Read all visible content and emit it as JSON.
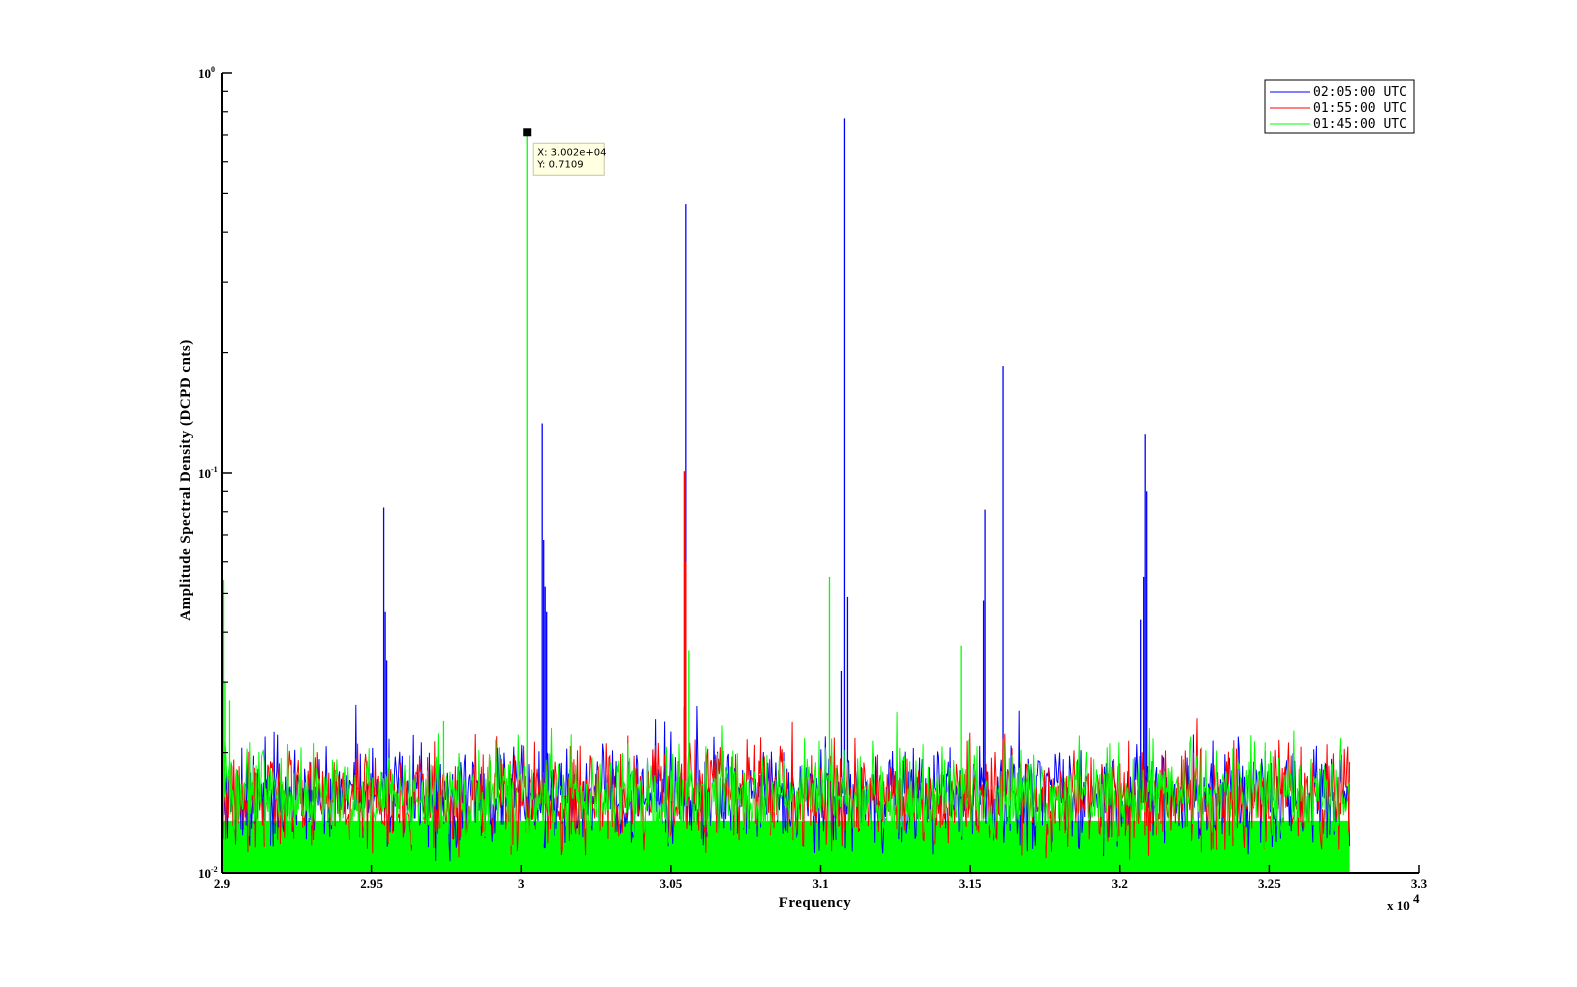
{
  "chart_data": {
    "type": "line",
    "xlabel": "Frequency",
    "ylabel": "Amplitude Spectral Density (DCPD cnts)",
    "x_exponent_label": "x 10",
    "x_exponent_power": "4",
    "xlim": [
      29000,
      33000
    ],
    "ylim": [
      0.01,
      1
    ],
    "yscale": "log",
    "grid": false,
    "legend_position": "top-right",
    "x_ticks": [
      {
        "value": 29000,
        "label": "2.9"
      },
      {
        "value": 29500,
        "label": "2.95"
      },
      {
        "value": 30000,
        "label": "3"
      },
      {
        "value": 30500,
        "label": "3.05"
      },
      {
        "value": 31000,
        "label": "3.1"
      },
      {
        "value": 31500,
        "label": "3.15"
      },
      {
        "value": 32000,
        "label": "3.2"
      },
      {
        "value": 32500,
        "label": "3.25"
      },
      {
        "value": 33000,
        "label": "3.3"
      }
    ],
    "y_ticks": [
      {
        "value": 0.01,
        "base": "10",
        "exp": "-2"
      },
      {
        "value": 0.1,
        "base": "10",
        "exp": "-1"
      },
      {
        "value": 1,
        "base": "10",
        "exp": "0"
      }
    ],
    "data_x_range": [
      29000,
      32768
    ],
    "series": [
      {
        "name": "02:05:00 UTC",
        "color": "#0000ff",
        "noise_floor": 0.0155,
        "peaks": [
          {
            "x": 29540,
            "y": 0.082
          },
          {
            "x": 29545,
            "y": 0.045
          },
          {
            "x": 29550,
            "y": 0.034
          },
          {
            "x": 30070,
            "y": 0.133
          },
          {
            "x": 30075,
            "y": 0.068
          },
          {
            "x": 30080,
            "y": 0.052
          },
          {
            "x": 30085,
            "y": 0.045
          },
          {
            "x": 30550,
            "y": 0.47
          },
          {
            "x": 30545,
            "y": 0.026
          },
          {
            "x": 31080,
            "y": 0.77
          },
          {
            "x": 31090,
            "y": 0.049
          },
          {
            "x": 31070,
            "y": 0.032
          },
          {
            "x": 31550,
            "y": 0.081
          },
          {
            "x": 31545,
            "y": 0.048
          },
          {
            "x": 31610,
            "y": 0.185
          },
          {
            "x": 32070,
            "y": 0.043
          },
          {
            "x": 32080,
            "y": 0.055
          },
          {
            "x": 32085,
            "y": 0.125
          },
          {
            "x": 32090,
            "y": 0.09
          }
        ]
      },
      {
        "name": "01:55:00 UTC",
        "color": "#ff0000",
        "noise_floor": 0.0155,
        "peaks": [
          {
            "x": 30545,
            "y": 0.101
          },
          {
            "x": 30550,
            "y": 0.06
          }
        ]
      },
      {
        "name": "01:45:00 UTC",
        "color": "#00ff00",
        "noise_floor": 0.0155,
        "peaks": [
          {
            "x": 30020,
            "y": 0.7109
          },
          {
            "x": 29005,
            "y": 0.054
          },
          {
            "x": 29010,
            "y": 0.03
          },
          {
            "x": 29025,
            "y": 0.027
          },
          {
            "x": 29740,
            "y": 0.024
          },
          {
            "x": 30560,
            "y": 0.036
          },
          {
            "x": 31030,
            "y": 0.055
          },
          {
            "x": 31470,
            "y": 0.037
          }
        ]
      }
    ],
    "data_tip": {
      "x_label": "X: 3.002e+04",
      "y_label": "Y: 0.7109",
      "x": 30020,
      "y": 0.7109
    }
  }
}
